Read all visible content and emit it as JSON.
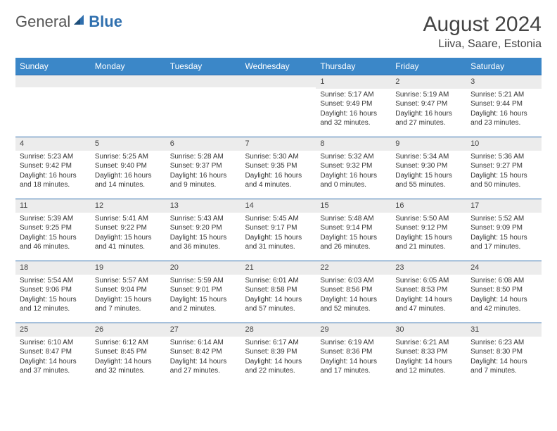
{
  "brand": {
    "part1": "General",
    "part2": "Blue"
  },
  "title": "August 2024",
  "location": "Liiva, Saare, Estonia",
  "colors": {
    "header_bg": "#3b87c8",
    "border": "#2f6fae",
    "daynum_bg": "#ececec",
    "text": "#333333"
  },
  "weekdays": [
    "Sunday",
    "Monday",
    "Tuesday",
    "Wednesday",
    "Thursday",
    "Friday",
    "Saturday"
  ],
  "weeks": [
    [
      {
        "day": "",
        "lines": []
      },
      {
        "day": "",
        "lines": []
      },
      {
        "day": "",
        "lines": []
      },
      {
        "day": "",
        "lines": []
      },
      {
        "day": "1",
        "lines": [
          "Sunrise: 5:17 AM",
          "Sunset: 9:49 PM",
          "Daylight: 16 hours and 32 minutes."
        ]
      },
      {
        "day": "2",
        "lines": [
          "Sunrise: 5:19 AM",
          "Sunset: 9:47 PM",
          "Daylight: 16 hours and 27 minutes."
        ]
      },
      {
        "day": "3",
        "lines": [
          "Sunrise: 5:21 AM",
          "Sunset: 9:44 PM",
          "Daylight: 16 hours and 23 minutes."
        ]
      }
    ],
    [
      {
        "day": "4",
        "lines": [
          "Sunrise: 5:23 AM",
          "Sunset: 9:42 PM",
          "Daylight: 16 hours and 18 minutes."
        ]
      },
      {
        "day": "5",
        "lines": [
          "Sunrise: 5:25 AM",
          "Sunset: 9:40 PM",
          "Daylight: 16 hours and 14 minutes."
        ]
      },
      {
        "day": "6",
        "lines": [
          "Sunrise: 5:28 AM",
          "Sunset: 9:37 PM",
          "Daylight: 16 hours and 9 minutes."
        ]
      },
      {
        "day": "7",
        "lines": [
          "Sunrise: 5:30 AM",
          "Sunset: 9:35 PM",
          "Daylight: 16 hours and 4 minutes."
        ]
      },
      {
        "day": "8",
        "lines": [
          "Sunrise: 5:32 AM",
          "Sunset: 9:32 PM",
          "Daylight: 16 hours and 0 minutes."
        ]
      },
      {
        "day": "9",
        "lines": [
          "Sunrise: 5:34 AM",
          "Sunset: 9:30 PM",
          "Daylight: 15 hours and 55 minutes."
        ]
      },
      {
        "day": "10",
        "lines": [
          "Sunrise: 5:36 AM",
          "Sunset: 9:27 PM",
          "Daylight: 15 hours and 50 minutes."
        ]
      }
    ],
    [
      {
        "day": "11",
        "lines": [
          "Sunrise: 5:39 AM",
          "Sunset: 9:25 PM",
          "Daylight: 15 hours and 46 minutes."
        ]
      },
      {
        "day": "12",
        "lines": [
          "Sunrise: 5:41 AM",
          "Sunset: 9:22 PM",
          "Daylight: 15 hours and 41 minutes."
        ]
      },
      {
        "day": "13",
        "lines": [
          "Sunrise: 5:43 AM",
          "Sunset: 9:20 PM",
          "Daylight: 15 hours and 36 minutes."
        ]
      },
      {
        "day": "14",
        "lines": [
          "Sunrise: 5:45 AM",
          "Sunset: 9:17 PM",
          "Daylight: 15 hours and 31 minutes."
        ]
      },
      {
        "day": "15",
        "lines": [
          "Sunrise: 5:48 AM",
          "Sunset: 9:14 PM",
          "Daylight: 15 hours and 26 minutes."
        ]
      },
      {
        "day": "16",
        "lines": [
          "Sunrise: 5:50 AM",
          "Sunset: 9:12 PM",
          "Daylight: 15 hours and 21 minutes."
        ]
      },
      {
        "day": "17",
        "lines": [
          "Sunrise: 5:52 AM",
          "Sunset: 9:09 PM",
          "Daylight: 15 hours and 17 minutes."
        ]
      }
    ],
    [
      {
        "day": "18",
        "lines": [
          "Sunrise: 5:54 AM",
          "Sunset: 9:06 PM",
          "Daylight: 15 hours and 12 minutes."
        ]
      },
      {
        "day": "19",
        "lines": [
          "Sunrise: 5:57 AM",
          "Sunset: 9:04 PM",
          "Daylight: 15 hours and 7 minutes."
        ]
      },
      {
        "day": "20",
        "lines": [
          "Sunrise: 5:59 AM",
          "Sunset: 9:01 PM",
          "Daylight: 15 hours and 2 minutes."
        ]
      },
      {
        "day": "21",
        "lines": [
          "Sunrise: 6:01 AM",
          "Sunset: 8:58 PM",
          "Daylight: 14 hours and 57 minutes."
        ]
      },
      {
        "day": "22",
        "lines": [
          "Sunrise: 6:03 AM",
          "Sunset: 8:56 PM",
          "Daylight: 14 hours and 52 minutes."
        ]
      },
      {
        "day": "23",
        "lines": [
          "Sunrise: 6:05 AM",
          "Sunset: 8:53 PM",
          "Daylight: 14 hours and 47 minutes."
        ]
      },
      {
        "day": "24",
        "lines": [
          "Sunrise: 6:08 AM",
          "Sunset: 8:50 PM",
          "Daylight: 14 hours and 42 minutes."
        ]
      }
    ],
    [
      {
        "day": "25",
        "lines": [
          "Sunrise: 6:10 AM",
          "Sunset: 8:47 PM",
          "Daylight: 14 hours and 37 minutes."
        ]
      },
      {
        "day": "26",
        "lines": [
          "Sunrise: 6:12 AM",
          "Sunset: 8:45 PM",
          "Daylight: 14 hours and 32 minutes."
        ]
      },
      {
        "day": "27",
        "lines": [
          "Sunrise: 6:14 AM",
          "Sunset: 8:42 PM",
          "Daylight: 14 hours and 27 minutes."
        ]
      },
      {
        "day": "28",
        "lines": [
          "Sunrise: 6:17 AM",
          "Sunset: 8:39 PM",
          "Daylight: 14 hours and 22 minutes."
        ]
      },
      {
        "day": "29",
        "lines": [
          "Sunrise: 6:19 AM",
          "Sunset: 8:36 PM",
          "Daylight: 14 hours and 17 minutes."
        ]
      },
      {
        "day": "30",
        "lines": [
          "Sunrise: 6:21 AM",
          "Sunset: 8:33 PM",
          "Daylight: 14 hours and 12 minutes."
        ]
      },
      {
        "day": "31",
        "lines": [
          "Sunrise: 6:23 AM",
          "Sunset: 8:30 PM",
          "Daylight: 14 hours and 7 minutes."
        ]
      }
    ]
  ]
}
